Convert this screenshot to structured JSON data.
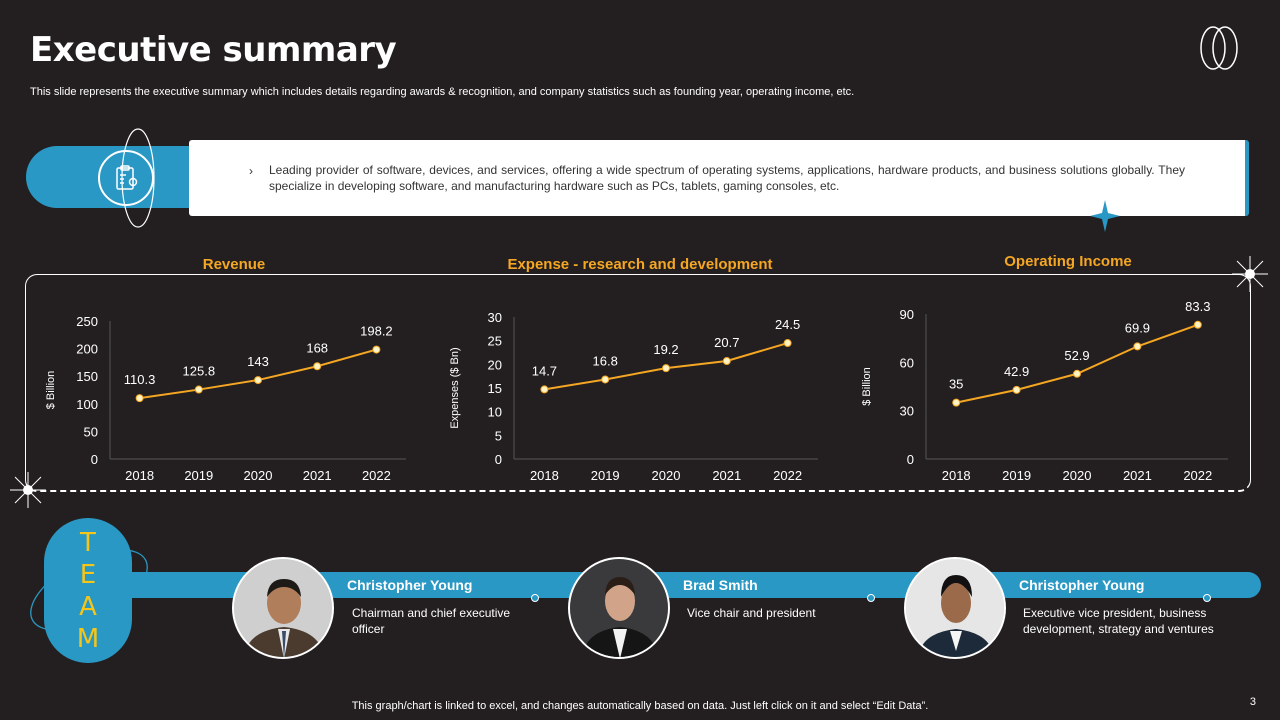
{
  "slide": {
    "title": "Executive summary",
    "subtitle": "This slide represents the executive summary which includes details regarding awards & recognition, and company statistics such as founding year, operating income, etc.",
    "intro_text": "Leading provider of software, devices, and services, offering a wide spectrum of operating systems, applications, hardware products, and business solutions globally. They specialize in developing software, and manufacturing hardware such as PCs, tablets, gaming consoles, etc.",
    "intro_bullet": "›",
    "team_letters": [
      "T",
      "E",
      "A",
      "M"
    ],
    "footer_note": "This graph/chart is linked to excel, and changes automatically based on data. Just left click on it and select “Edit Data”.",
    "page_number": "3"
  },
  "team": [
    {
      "name": "Christopher Young",
      "role": "Chairman and chief executive officer"
    },
    {
      "name": "Brad Smith",
      "role": "Vice chair and president"
    },
    {
      "name": "Christopher Young",
      "role": "Executive vice president, business development, strategy and ventures"
    }
  ],
  "colors": {
    "background": "#231f20",
    "accent_blue": "#2a98c4",
    "accent_orange": "#f5a623",
    "team_letters": "#f5c518"
  },
  "chart_data": [
    {
      "type": "line",
      "title": "Revenue",
      "ylabel": "$ Billion",
      "categories": [
        "2018",
        "2019",
        "2020",
        "2021",
        "2022"
      ],
      "values": [
        110.3,
        125.8,
        143,
        168,
        198.2
      ],
      "ylim": [
        0,
        250
      ],
      "yticks": [
        0,
        50,
        100,
        150,
        200,
        250
      ]
    },
    {
      "type": "line",
      "title": "Expense - research and development",
      "ylabel": "Expenses ($ Bn)",
      "categories": [
        "2018",
        "2019",
        "2020",
        "2021",
        "2022"
      ],
      "values": [
        14.7,
        16.8,
        19.2,
        20.7,
        24.5
      ],
      "ylim": [
        0,
        30
      ],
      "yticks": [
        0,
        5,
        10,
        15,
        20,
        25,
        30
      ]
    },
    {
      "type": "line",
      "title": "Operating Income",
      "ylabel": "$ Billion",
      "categories": [
        "2018",
        "2019",
        "2020",
        "2021",
        "2022"
      ],
      "values": [
        35,
        42.9,
        52.9,
        69.9,
        83.3
      ],
      "ylim": [
        0,
        90
      ],
      "yticks": [
        0,
        30,
        60,
        90
      ]
    }
  ]
}
